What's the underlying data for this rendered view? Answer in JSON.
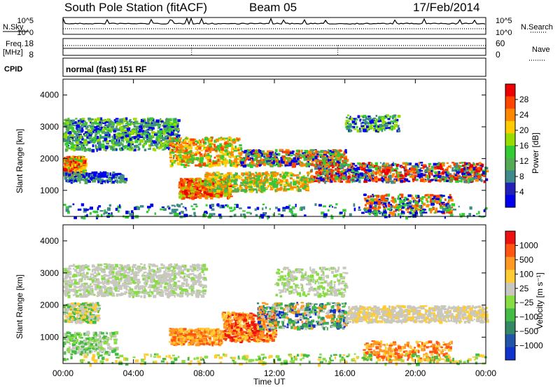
{
  "header": {
    "station_title": "South Pole Station (fitACF)",
    "beam": "Beam 05",
    "date": "17/Feb/2014"
  },
  "top_panels": {
    "nsky_label": "N.Sky",
    "nsearch_label": "N.Search",
    "nsky_ticks": [
      "10^5",
      "10^0"
    ],
    "nsearch_ticks": [
      "10^5",
      "10^0"
    ],
    "freq_label_1": "Freq.",
    "freq_label_2": "[MHz]",
    "freq_ticks": [
      "18",
      "8"
    ],
    "nave_label": "Nave",
    "nave_ticks": [
      "60",
      "0"
    ],
    "cpid_label": "CPID",
    "cpid_text": "normal (fast) 151 RF"
  },
  "chart_data": [
    {
      "type": "heatmap",
      "name": "power",
      "ylabel": "Slant Range [km]",
      "ylim": [
        180,
        4500
      ],
      "y_ticks": [
        "4000",
        "3000",
        "2000",
        "1000"
      ],
      "colorbar_label": "Power [dB]",
      "colorbar_ticks": [
        "28",
        "24",
        "20",
        "16",
        "12",
        "8",
        "4"
      ],
      "colormap": [
        "#0000ee",
        "#2222bb",
        "#3f8a8a",
        "#55aa55",
        "#33cc33",
        "#99dd00",
        "#ffcc00",
        "#ff8800",
        "#ff4400",
        "#ee0000"
      ],
      "x_ticks": [
        "00:00",
        "04:00",
        "08:00",
        "12:00",
        "16:00",
        "20:00",
        "00:00"
      ],
      "xlim_hours": [
        0,
        24
      ]
    },
    {
      "type": "heatmap",
      "name": "velocity",
      "ylabel": "Slant Range [km]",
      "ylim": [
        180,
        4500
      ],
      "y_ticks": [
        "4000",
        "3000",
        "2000",
        "1000"
      ],
      "colorbar_label": "Velocity [m s⁻¹]",
      "colorbar_ticks": [
        "1000",
        "500",
        "100",
        "25",
        "−25",
        "−100",
        "−500",
        "−1000"
      ],
      "colormap": [
        "#1133cc",
        "#2255aa",
        "#338866",
        "#44bb44",
        "#88dd44",
        "#c8c8c0",
        "#ffcc33",
        "#ff9922",
        "#ff5511",
        "#ee1111"
      ],
      "x_ticks": [
        "00:00",
        "04:00",
        "08:00",
        "12:00",
        "16:00",
        "20:00",
        "00:00"
      ],
      "xlabel": "Time UT",
      "xlim_hours": [
        0,
        24
      ]
    }
  ]
}
